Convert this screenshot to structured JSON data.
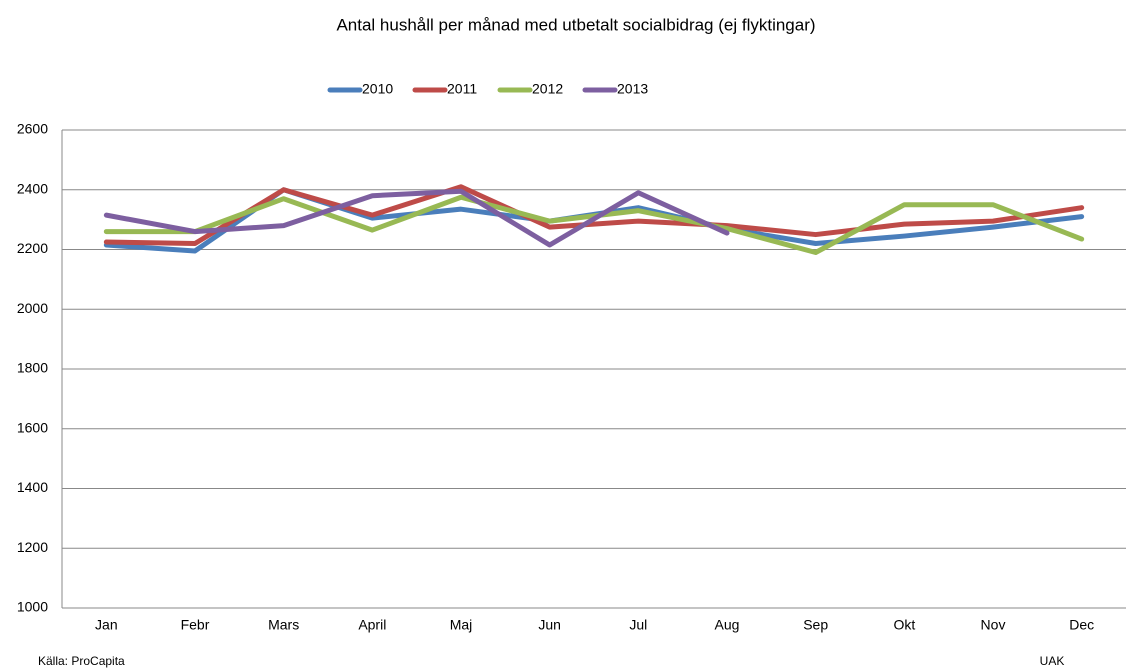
{
  "chart_data": {
    "type": "line",
    "title": "Antal hushåll per månad med utbetalt socialbidrag (ej flyktingar)",
    "categories": [
      "Jan",
      "Febr",
      "Mars",
      "April",
      "Maj",
      "Jun",
      "Jul",
      "Aug",
      "Sep",
      "Okt",
      "Nov",
      "Dec"
    ],
    "series": [
      {
        "name": "2010",
        "color": "#4a7ebb",
        "values": [
          2215,
          2195,
          2400,
          2305,
          2335,
          2295,
          2340,
          2270,
          2220,
          2245,
          2275,
          2310
        ]
      },
      {
        "name": "2011",
        "color": "#be4b48",
        "values": [
          2225,
          2220,
          2400,
          2315,
          2410,
          2275,
          2295,
          2280,
          2250,
          2285,
          2295,
          2340
        ]
      },
      {
        "name": "2012",
        "color": "#98b954",
        "values": [
          2260,
          2260,
          2370,
          2265,
          2375,
          2295,
          2330,
          2270,
          2190,
          2350,
          2350,
          2235
        ]
      },
      {
        "name": "2013",
        "color": "#7d5fa0",
        "values": [
          2315,
          2260,
          2280,
          2380,
          2395,
          2215,
          2390,
          2255,
          null,
          null,
          null,
          null
        ]
      }
    ],
    "ylim": [
      1000,
      2600
    ],
    "yticks": [
      1000,
      1200,
      1400,
      1600,
      1800,
      2000,
      2200,
      2400,
      2600
    ],
    "grid": true,
    "legend": "top",
    "source": "Källa: ProCapita",
    "credit": "UAK"
  }
}
